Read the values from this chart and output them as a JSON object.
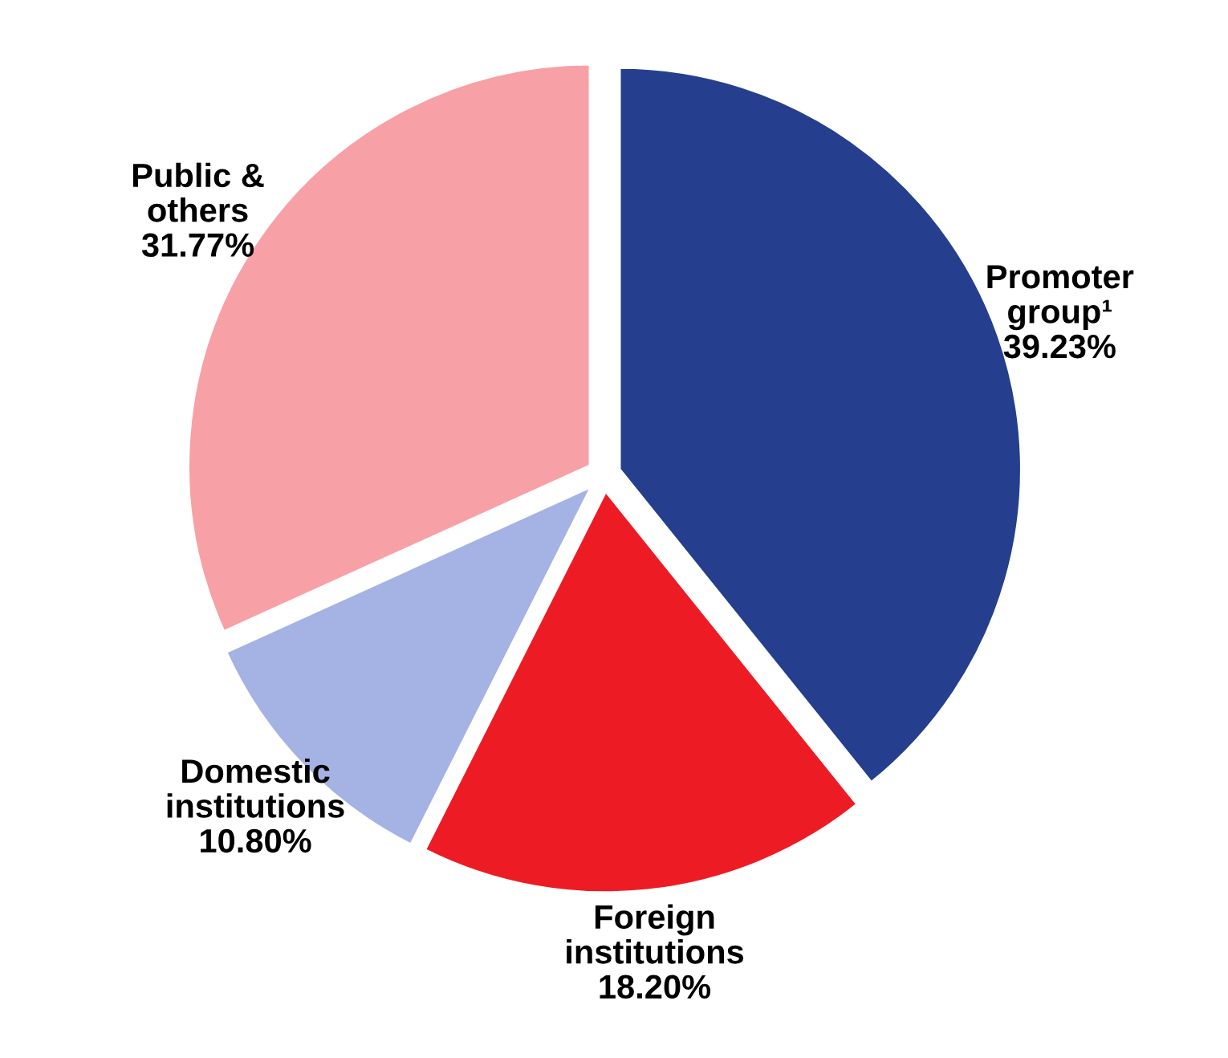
{
  "chart_data": {
    "type": "pie",
    "categories": [
      "Promoter\ngroup¹",
      "Foreign\ninstitutions",
      "Domestic\ninstitutions",
      "Public &\nothers"
    ],
    "values": [
      39.23,
      18.2,
      10.8,
      31.77
    ],
    "value_labels": [
      "39.23%",
      "18.20%",
      "10.80%",
      "31.77%"
    ],
    "colors": [
      "#253f8e",
      "#ed1c24",
      "#a4b3e4",
      "#f7a1a6"
    ],
    "legend": false
  }
}
